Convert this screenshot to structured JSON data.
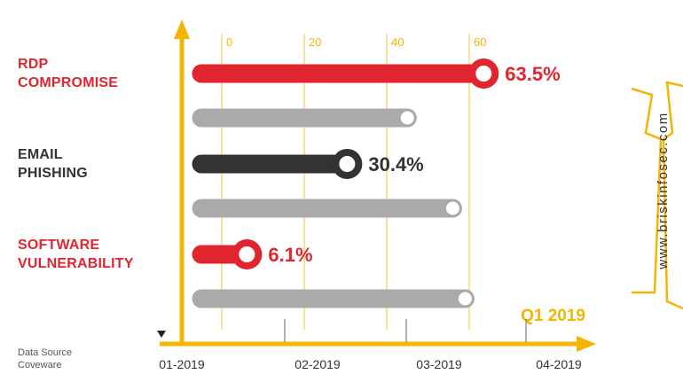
{
  "chart_data": {
    "type": "lollipop",
    "categories": [
      "RDP COMPROMISE",
      "EMAIL PHISHING",
      "SOFTWARE VULNERABILITY"
    ],
    "series": [
      {
        "values": [
          63.5,
          30.4,
          6.1
        ],
        "value_labels": [
          "63.5%",
          "30.4%",
          "6.1%"
        ],
        "colors": [
          "#e0252f",
          "#333333",
          "#e0252f"
        ]
      },
      {
        "values": [
          45,
          56,
          59
        ],
        "color": "#aaaaaa"
      }
    ],
    "xlim": [
      0,
      70
    ],
    "xticks": [
      0,
      20,
      40,
      60
    ],
    "grid": true,
    "timeline": [
      "01-2019",
      "02-2019",
      "03-2019",
      "04-2019"
    ],
    "period": "Q1 2019",
    "source_label": "Data Source",
    "source": "Coveware",
    "watermark": "www.briskinfosec.com"
  }
}
